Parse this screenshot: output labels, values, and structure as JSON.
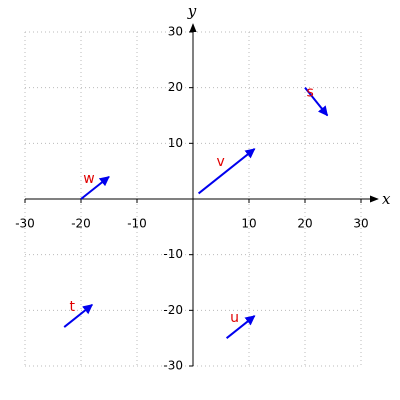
{
  "chart_data": {
    "type": "vector",
    "x_label": "x",
    "y_label": "y",
    "xlim": [
      -30,
      30
    ],
    "ylim": [
      -30,
      30
    ],
    "xticks": [
      -30,
      -20,
      -10,
      10,
      20,
      30
    ],
    "yticks": [
      -30,
      -20,
      -10,
      10,
      20,
      30
    ],
    "grid": true,
    "color": "#0000ee",
    "label_color": "#e00000",
    "vectors": [
      {
        "name": "v",
        "x": 1,
        "y": 1,
        "dx": 10,
        "dy": 8
      },
      {
        "name": "s",
        "x": 20,
        "y": 20,
        "dx": 4,
        "dy": -5
      },
      {
        "name": "w",
        "x": -20,
        "y": 0,
        "dx": 5,
        "dy": 4
      },
      {
        "name": "t",
        "x": -23,
        "y": -23,
        "dx": 5,
        "dy": 4
      },
      {
        "name": "u",
        "x": 6,
        "y": -25,
        "dx": 5,
        "dy": 4
      }
    ]
  }
}
